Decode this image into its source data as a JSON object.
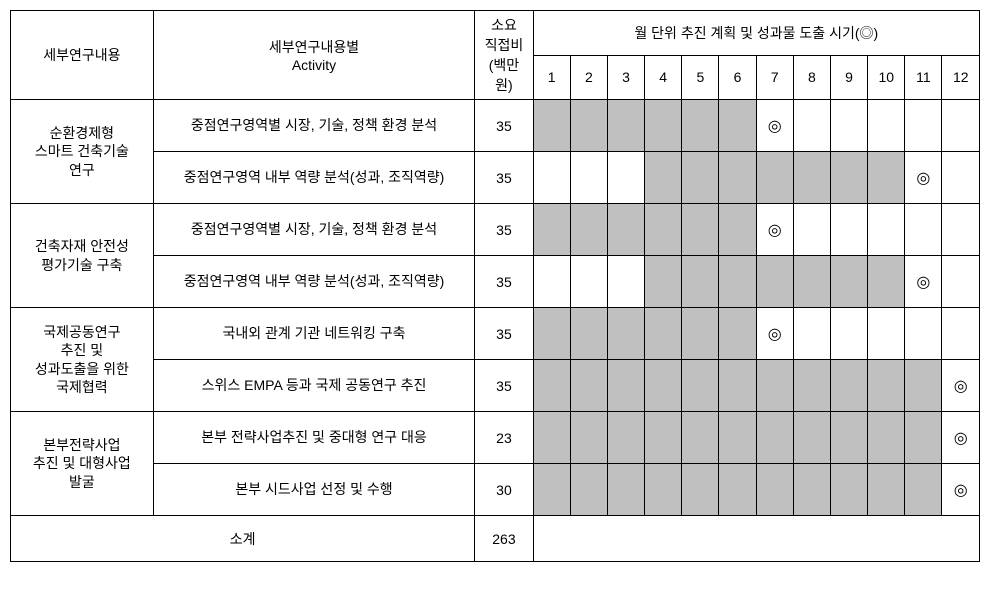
{
  "headers": {
    "category": "세부연구내용",
    "activity_line1": "세부연구내용별",
    "activity_line2": "Activity",
    "cost_line1": "소요",
    "cost_line2": "직접비",
    "cost_line3": "(백만",
    "cost_line4": "원)",
    "schedule_title": "월 단위 추진 계획 및 성과물 도출 시기(◎)",
    "months": [
      "1",
      "2",
      "3",
      "4",
      "5",
      "6",
      "7",
      "8",
      "9",
      "10",
      "11",
      "12"
    ]
  },
  "rows": [
    {
      "category": "순환경제형\n스마트 건축기술\n연구",
      "activity": "중점연구영역별 시장, 기술, 정책 환경 분석",
      "cost": "35",
      "shaded": [
        1,
        2,
        3,
        4,
        5,
        6
      ],
      "marker_month": 7
    },
    {
      "activity": "중점연구영역 내부 역량 분석(성과, 조직역량)",
      "cost": "35",
      "shaded": [
        4,
        5,
        6,
        7,
        8,
        9,
        10
      ],
      "marker_month": 11
    },
    {
      "category": "건축자재 안전성\n평가기술 구축",
      "activity": "중점연구영역별 시장, 기술, 정책 환경 분석",
      "cost": "35",
      "shaded": [
        1,
        2,
        3,
        4,
        5,
        6
      ],
      "marker_month": 7
    },
    {
      "activity": "중점연구영역 내부 역량 분석(성과, 조직역량)",
      "cost": "35",
      "shaded": [
        4,
        5,
        6,
        7,
        8,
        9,
        10
      ],
      "marker_month": 11
    },
    {
      "category": "국제공동연구\n추진 및\n성과도출을 위한\n국제협력",
      "activity": "국내외 관계 기관 네트워킹 구축",
      "cost": "35",
      "shaded": [
        1,
        2,
        3,
        4,
        5,
        6
      ],
      "marker_month": 7
    },
    {
      "activity": "스위스 EMPA 등과 국제 공동연구 추진",
      "cost": "35",
      "shaded": [
        1,
        2,
        3,
        4,
        5,
        6,
        7,
        8,
        9,
        10,
        11
      ],
      "marker_month": 12
    },
    {
      "category": "본부전략사업\n추진 및 대형사업\n발굴",
      "activity": "본부 전략사업추진 및 중대형 연구 대응",
      "cost": "23",
      "shaded": [
        1,
        2,
        3,
        4,
        5,
        6,
        7,
        8,
        9,
        10,
        11
      ],
      "marker_month": 12
    },
    {
      "activity": "본부 시드사업 선정 및 수행",
      "cost": "30",
      "shaded": [
        1,
        2,
        3,
        4,
        5,
        6,
        7,
        8,
        9,
        10,
        11
      ],
      "marker_month": 12
    }
  ],
  "subtotal": {
    "label": "소계",
    "value": "263"
  },
  "marker_symbol": "◎",
  "colors": {
    "shaded": "#c0c0c0",
    "border": "#000000",
    "background": "#ffffff"
  }
}
